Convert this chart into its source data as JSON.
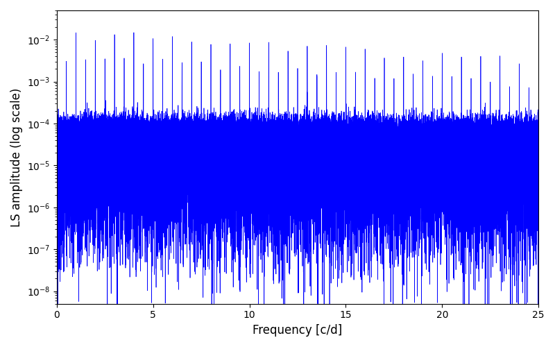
{
  "xlabel": "Frequency [c/d]",
  "ylabel": "LS amplitude (log scale)",
  "xlim": [
    0,
    25
  ],
  "ylim": [
    5e-09,
    0.05
  ],
  "line_color": "#0000ff",
  "line_width": 0.5,
  "freq_min": 0.01,
  "freq_max": 25.0,
  "n_points": 100000,
  "seed": 12345,
  "background_color": "#ffffff",
  "figsize": [
    8.0,
    5.0
  ],
  "dpi": 100
}
